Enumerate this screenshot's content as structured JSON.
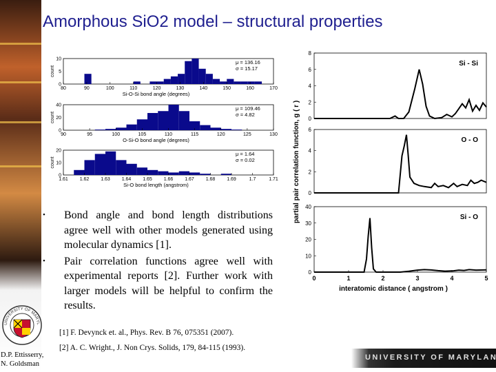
{
  "title": "Amorphous SiO2 model – structural properties",
  "bullets": [
    "Bond angle and bond length distributions agree well with other models generated using molecular dynamics [1].",
    "Pair correlation functions agree well with experimental reports [2]. Further work with larger models will be helpful to confirm the results."
  ],
  "references": [
    "[1] F. Devynck et. al., Phys. Rev. B 76, 075351 (2007).",
    "[2] A. C. Wright., J. Non Crys. Solids, 179, 84-115 (1993)."
  ],
  "authors": [
    "D.P. Ettisserry,",
    "N. Goldsman"
  ],
  "footer": {
    "university": "UNIVERSITY OF MARYLAND",
    "seal_text": "UNIVERSITY OF MARYLAND"
  },
  "colors": {
    "title": "#1f1f8f",
    "bar_fill": "#0a0a8c",
    "footer_bg": "#1b1b1b"
  },
  "chart_data": [
    {
      "type": "bar",
      "xlabel": "Si-O-Si bond angle (degrees)",
      "ylabel": "count",
      "stats": [
        "μ = 136.16",
        "σ = 15.17"
      ],
      "xlim": [
        80,
        170
      ],
      "ylim": [
        0,
        10
      ],
      "xticks": [
        80,
        90,
        100,
        110,
        120,
        130,
        140,
        150,
        160,
        170
      ],
      "yticks": [
        0,
        5,
        10
      ],
      "bins": [
        {
          "x0": 89,
          "x1": 92,
          "v": 4
        },
        {
          "x0": 110,
          "x1": 113,
          "v": 1
        },
        {
          "x0": 117,
          "x1": 120,
          "v": 1
        },
        {
          "x0": 120,
          "x1": 123,
          "v": 1
        },
        {
          "x0": 123,
          "x1": 126,
          "v": 2
        },
        {
          "x0": 126,
          "x1": 129,
          "v": 3
        },
        {
          "x0": 129,
          "x1": 132,
          "v": 4
        },
        {
          "x0": 132,
          "x1": 135,
          "v": 9
        },
        {
          "x0": 135,
          "x1": 138,
          "v": 10
        },
        {
          "x0": 138,
          "x1": 141,
          "v": 6
        },
        {
          "x0": 141,
          "x1": 144,
          "v": 4
        },
        {
          "x0": 144,
          "x1": 147,
          "v": 2
        },
        {
          "x0": 147,
          "x1": 150,
          "v": 1
        },
        {
          "x0": 150,
          "x1": 153,
          "v": 2
        },
        {
          "x0": 153,
          "x1": 156,
          "v": 1
        },
        {
          "x0": 156,
          "x1": 159,
          "v": 1
        },
        {
          "x0": 159,
          "x1": 162,
          "v": 1
        },
        {
          "x0": 162,
          "x1": 165,
          "v": 1
        }
      ]
    },
    {
      "type": "bar",
      "xlabel": "O-Si-O bond angle (degrees)",
      "ylabel": "count",
      "stats": [
        "μ = 109.46",
        "σ = 4.82"
      ],
      "xlim": [
        90,
        130
      ],
      "ylim": [
        0,
        40
      ],
      "xticks": [
        90,
        95,
        100,
        105,
        110,
        115,
        120,
        125,
        130
      ],
      "yticks": [
        0,
        20,
        40
      ],
      "bins": [
        {
          "x0": 96,
          "x1": 98,
          "v": 1
        },
        {
          "x0": 98,
          "x1": 100,
          "v": 2
        },
        {
          "x0": 100,
          "x1": 102,
          "v": 4
        },
        {
          "x0": 102,
          "x1": 104,
          "v": 9
        },
        {
          "x0": 104,
          "x1": 106,
          "v": 17
        },
        {
          "x0": 106,
          "x1": 108,
          "v": 27
        },
        {
          "x0": 108,
          "x1": 110,
          "v": 30
        },
        {
          "x0": 110,
          "x1": 112,
          "v": 40
        },
        {
          "x0": 112,
          "x1": 114,
          "v": 30
        },
        {
          "x0": 114,
          "x1": 116,
          "v": 14
        },
        {
          "x0": 116,
          "x1": 118,
          "v": 8
        },
        {
          "x0": 118,
          "x1": 120,
          "v": 4
        },
        {
          "x0": 120,
          "x1": 122,
          "v": 2
        },
        {
          "x0": 122,
          "x1": 124,
          "v": 1
        }
      ]
    },
    {
      "type": "bar",
      "xlabel": "Si-O bond length (angstrom)",
      "ylabel": "count",
      "stats": [
        "μ = 1.64",
        "σ = 0.02"
      ],
      "xlim": [
        1.61,
        1.71
      ],
      "ylim": [
        0,
        20
      ],
      "xticks": [
        1.61,
        1.62,
        1.63,
        1.64,
        1.65,
        1.66,
        1.67,
        1.68,
        1.69,
        1.7,
        1.71
      ],
      "yticks": [
        0,
        10,
        20
      ],
      "bins": [
        {
          "x0": 1.615,
          "x1": 1.62,
          "v": 4
        },
        {
          "x0": 1.62,
          "x1": 1.625,
          "v": 12
        },
        {
          "x0": 1.625,
          "x1": 1.63,
          "v": 17
        },
        {
          "x0": 1.63,
          "x1": 1.635,
          "v": 19
        },
        {
          "x0": 1.635,
          "x1": 1.64,
          "v": 12
        },
        {
          "x0": 1.64,
          "x1": 1.645,
          "v": 9
        },
        {
          "x0": 1.645,
          "x1": 1.65,
          "v": 6
        },
        {
          "x0": 1.65,
          "x1": 1.655,
          "v": 4
        },
        {
          "x0": 1.655,
          "x1": 1.66,
          "v": 3
        },
        {
          "x0": 1.66,
          "x1": 1.665,
          "v": 2
        },
        {
          "x0": 1.665,
          "x1": 1.67,
          "v": 3
        },
        {
          "x0": 1.67,
          "x1": 1.675,
          "v": 2
        },
        {
          "x0": 1.675,
          "x1": 1.68,
          "v": 1
        },
        {
          "x0": 1.685,
          "x1": 1.69,
          "v": 1
        }
      ]
    },
    {
      "type": "line",
      "panels_share_x": true,
      "xlabel": "interatomic distance ( angstrom )",
      "ylabel": "partial pair correlation function, g ( r )",
      "xlim": [
        0,
        5
      ],
      "xticks": [
        0,
        1,
        2,
        3,
        4,
        5
      ],
      "panels": [
        {
          "label": "Si - Si",
          "ylim": [
            0,
            8
          ],
          "yticks": [
            0,
            2,
            4,
            6,
            8
          ],
          "points": [
            [
              0,
              0
            ],
            [
              2.2,
              0
            ],
            [
              2.35,
              0.3
            ],
            [
              2.45,
              0
            ],
            [
              2.6,
              0
            ],
            [
              2.75,
              0.8
            ],
            [
              2.92,
              3.6
            ],
            [
              3.05,
              6.0
            ],
            [
              3.15,
              4.2
            ],
            [
              3.25,
              1.5
            ],
            [
              3.35,
              0.3
            ],
            [
              3.5,
              0
            ],
            [
              3.7,
              0.1
            ],
            [
              3.85,
              0.5
            ],
            [
              4.0,
              0.2
            ],
            [
              4.1,
              0.6
            ],
            [
              4.2,
              1.2
            ],
            [
              4.3,
              1.8
            ],
            [
              4.4,
              1.3
            ],
            [
              4.5,
              2.3
            ],
            [
              4.6,
              0.9
            ],
            [
              4.7,
              1.6
            ],
            [
              4.8,
              1.0
            ],
            [
              4.9,
              1.9
            ],
            [
              5.0,
              1.4
            ]
          ]
        },
        {
          "label": "O - O",
          "ylim": [
            0,
            6
          ],
          "yticks": [
            0,
            2,
            4,
            6
          ],
          "points": [
            [
              0,
              0
            ],
            [
              2.45,
              0
            ],
            [
              2.55,
              3.5
            ],
            [
              2.62,
              4.5
            ],
            [
              2.68,
              5.5
            ],
            [
              2.73,
              3.6
            ],
            [
              2.78,
              1.5
            ],
            [
              2.9,
              0.9
            ],
            [
              3.05,
              0.7
            ],
            [
              3.2,
              0.6
            ],
            [
              3.4,
              0.5
            ],
            [
              3.5,
              0.9
            ],
            [
              3.6,
              0.6
            ],
            [
              3.75,
              0.7
            ],
            [
              3.9,
              0.5
            ],
            [
              4.05,
              0.9
            ],
            [
              4.15,
              0.6
            ],
            [
              4.3,
              0.8
            ],
            [
              4.45,
              0.7
            ],
            [
              4.55,
              1.2
            ],
            [
              4.65,
              0.9
            ],
            [
              4.75,
              1.0
            ],
            [
              4.85,
              1.2
            ],
            [
              5.0,
              1.0
            ]
          ]
        },
        {
          "label": "Si - O",
          "ylim": [
            0,
            40
          ],
          "yticks": [
            0,
            10,
            20,
            30,
            40
          ],
          "points": [
            [
              0,
              0
            ],
            [
              1.45,
              0
            ],
            [
              1.52,
              8
            ],
            [
              1.57,
              22
            ],
            [
              1.62,
              33
            ],
            [
              1.67,
              15
            ],
            [
              1.72,
              2
            ],
            [
              1.8,
              0
            ],
            [
              2.5,
              0
            ],
            [
              2.75,
              0.5
            ],
            [
              3.0,
              1.2
            ],
            [
              3.2,
              1.5
            ],
            [
              3.4,
              1.3
            ],
            [
              3.6,
              0.9
            ],
            [
              3.8,
              0.6
            ],
            [
              4.05,
              0.8
            ],
            [
              4.2,
              1.2
            ],
            [
              4.35,
              1.0
            ],
            [
              4.5,
              1.5
            ],
            [
              4.7,
              1.2
            ],
            [
              5.0,
              1.4
            ]
          ]
        }
      ]
    }
  ]
}
